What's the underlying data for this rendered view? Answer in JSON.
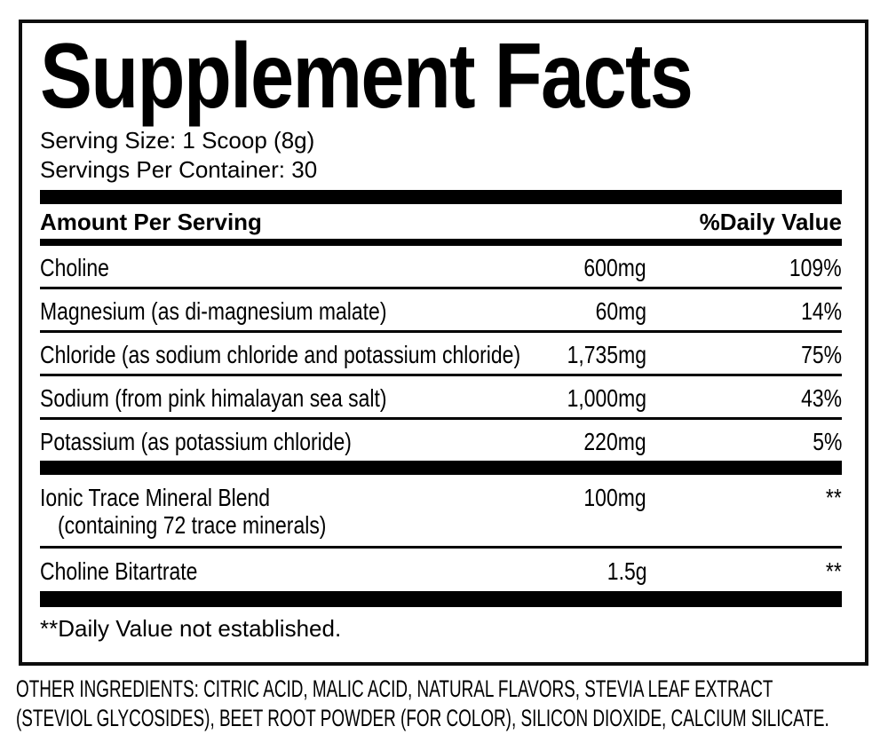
{
  "label": {
    "title": "Supplement Facts",
    "serving_size": "Serving Size: 1 Scoop (8g)",
    "servings_per_container": "Servings Per Container: 30",
    "header": {
      "amount_per_serving": "Amount Per Serving",
      "daily_value": "%Daily Value"
    },
    "rows": [
      {
        "name": "Choline",
        "amount": "600mg",
        "dv": "109%"
      },
      {
        "name": "Magnesium (as di-magnesium malate)",
        "amount": "60mg",
        "dv": "14%"
      },
      {
        "name": "Chloride (as sodium chloride and potassium chloride)",
        "amount": "1,735mg",
        "dv": "75%"
      },
      {
        "name": "Sodium (from pink himalayan sea salt)",
        "amount": "1,000mg",
        "dv": "43%"
      },
      {
        "name": "Potassium (as potassium chloride)",
        "amount": "220mg",
        "dv": "5%"
      }
    ],
    "blend": {
      "name": "Ionic Trace Mineral Blend",
      "detail": "(containing 72 trace minerals)",
      "amount": "100mg",
      "dv": "**"
    },
    "extra_row": {
      "name": "Choline Bitartrate",
      "amount": "1.5g",
      "dv": "**"
    },
    "footnote": "**Daily Value not established.",
    "colors": {
      "ink": "#000000",
      "background": "#ffffff"
    }
  },
  "other_ingredients": {
    "line1": "OTHER INGREDIENTS: CITRIC ACID, MALIC ACID, NATURAL FLAVORS, STEVIA LEAF EXTRACT",
    "line2": "(STEVIOL GLYCOSIDES), BEET ROOT POWDER (FOR COLOR), SILICON DIOXIDE, CALCIUM SILICATE."
  }
}
